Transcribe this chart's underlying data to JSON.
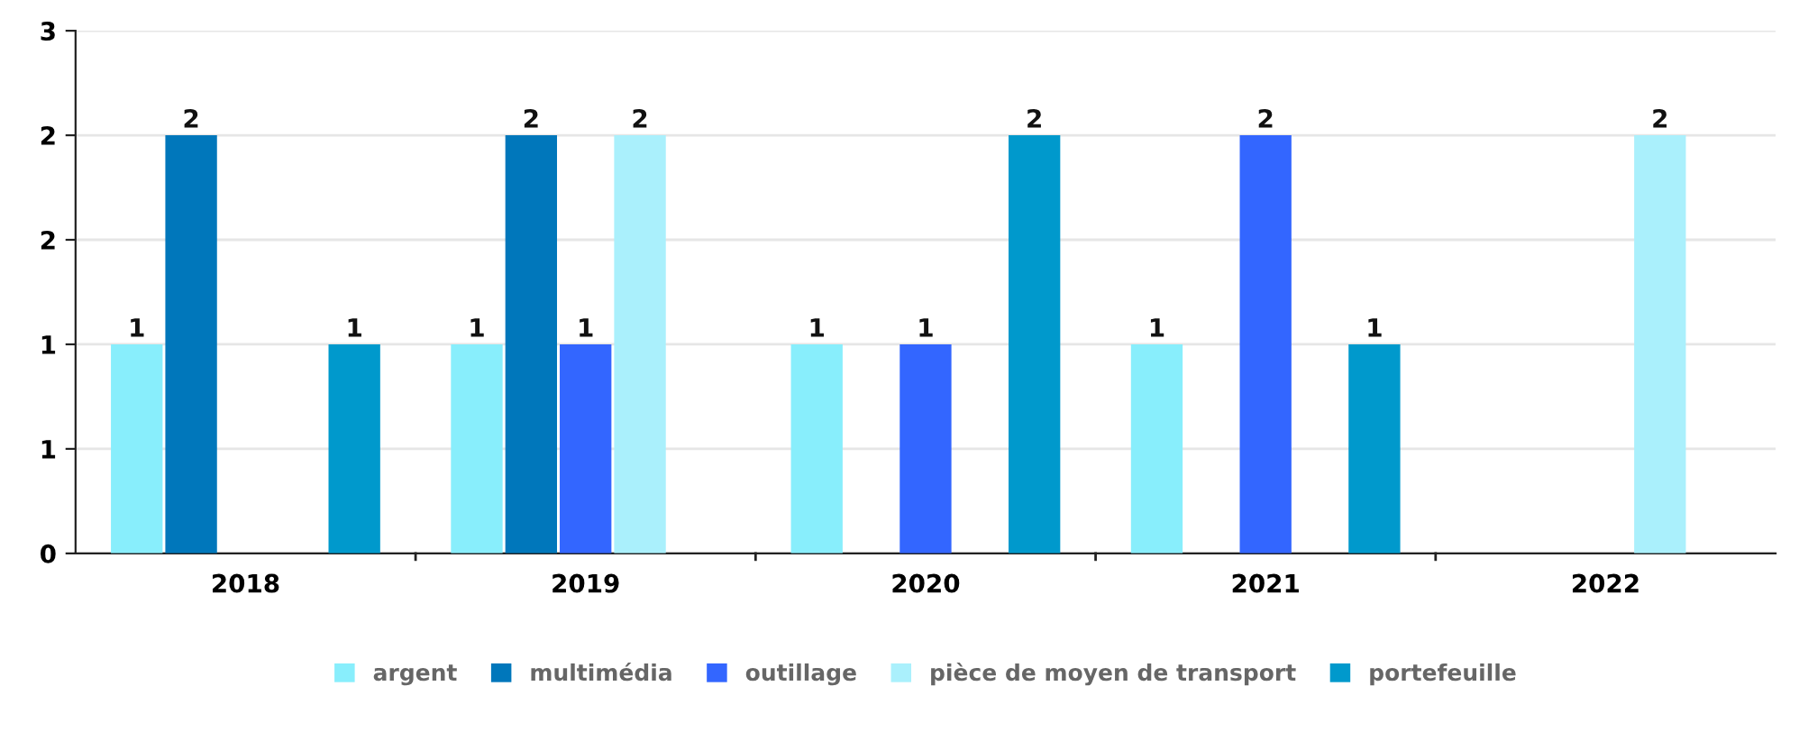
{
  "chart_data": {
    "type": "bar",
    "categories": [
      "2018",
      "2019",
      "2020",
      "2021",
      "2022"
    ],
    "series": [
      {
        "name": "argent",
        "color": "#88eefc",
        "values": [
          1,
          1,
          1,
          1,
          null
        ]
      },
      {
        "name": "multimédia",
        "color": "#0077bb",
        "values": [
          2,
          2,
          null,
          null,
          null
        ]
      },
      {
        "name": "outillage",
        "color": "#3366ff",
        "values": [
          null,
          1,
          1,
          2,
          null
        ]
      },
      {
        "name": "pièce de moyen de transport",
        "color": "#aaf0fc",
        "values": [
          null,
          2,
          null,
          null,
          2
        ]
      },
      {
        "name": "portefeuille",
        "color": "#0099cc",
        "values": [
          1,
          null,
          2,
          1,
          null
        ]
      }
    ],
    "ylim": [
      0,
      2.5
    ],
    "yticks": [
      0,
      {
        "value": 0.5,
        "label": "1"
      },
      1,
      {
        "value": 1.5,
        "label": "2"
      },
      2,
      {
        "value": 2.5,
        "label": "3"
      }
    ],
    "grid": "y",
    "legend": "bottom",
    "data_labels": true
  }
}
